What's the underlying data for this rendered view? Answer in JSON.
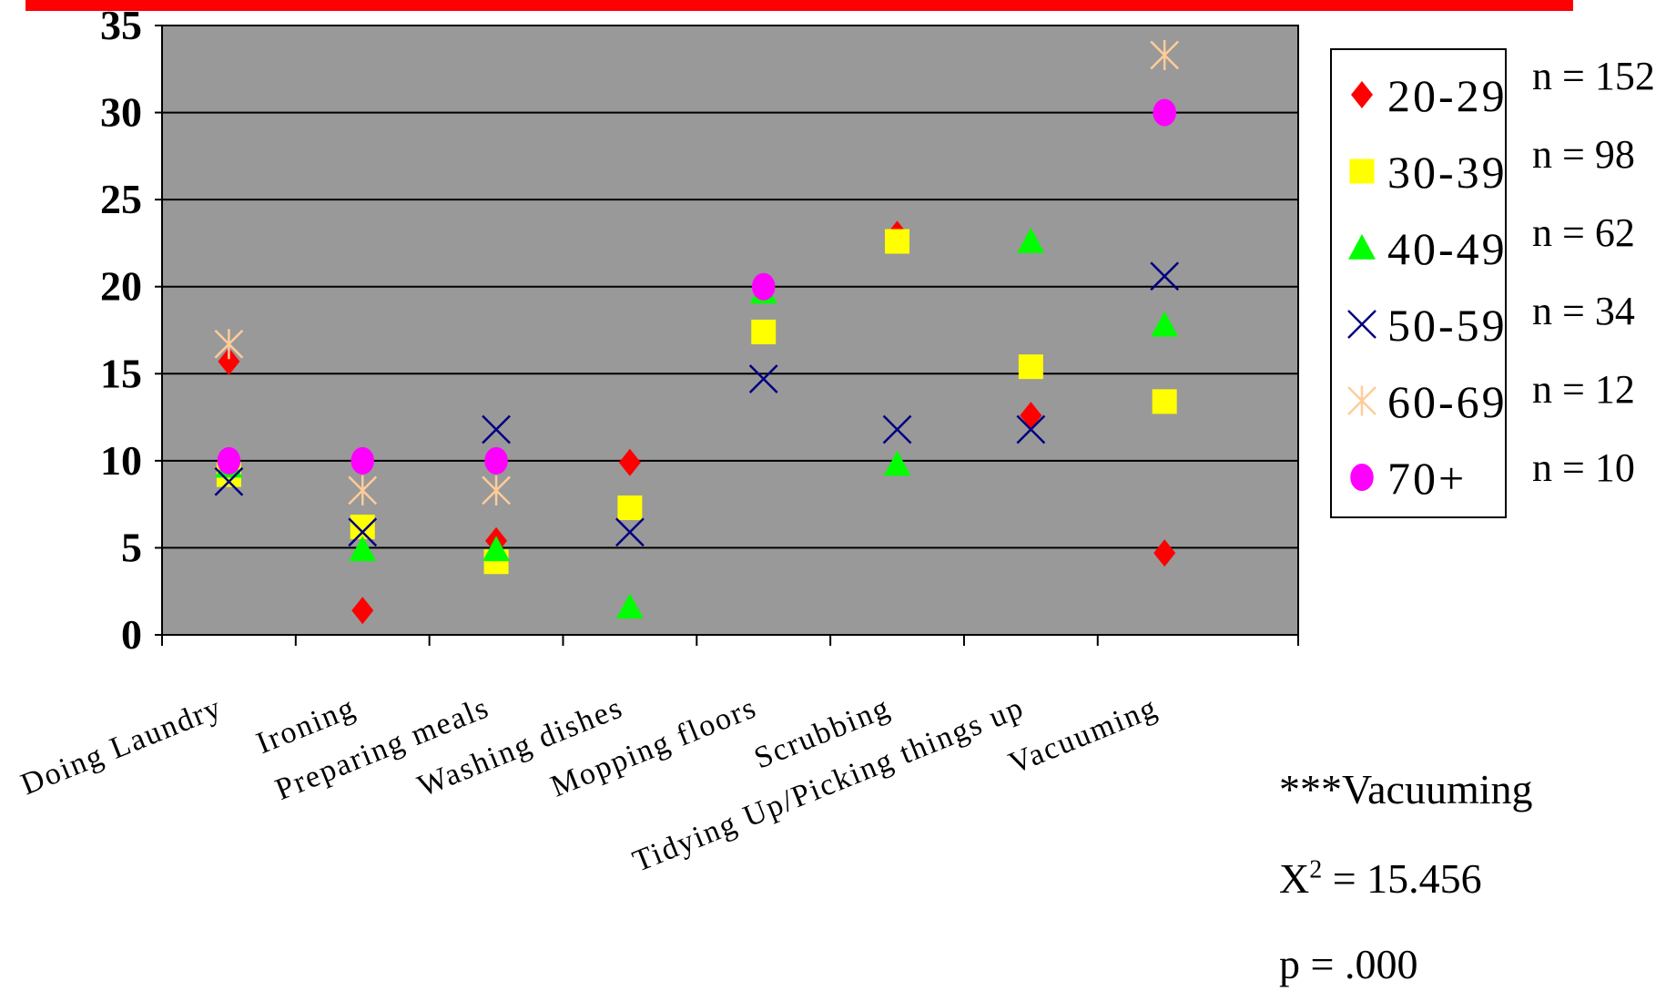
{
  "chart_data": {
    "type": "scatter",
    "title": "",
    "xlabel": "",
    "ylabel": "",
    "ylim": [
      0,
      35
    ],
    "y_ticks": [
      "0",
      "5",
      "10",
      "15",
      "20",
      "25",
      "30",
      "35"
    ],
    "categories": [
      "Doing Laundry",
      "Ironing",
      "Preparing meals",
      "Washing dishes",
      "Mopping floors",
      "Scrubbing",
      "Tidying Up/Picking things up",
      "Vacuuming"
    ],
    "grid": true,
    "legend_position": "right",
    "series": [
      {
        "name": "20-29",
        "marker": "diamond",
        "color": "#ff0000",
        "values": [
          15.7,
          1.4,
          5.4,
          9.9,
          null,
          23.0,
          12.6,
          4.7
        ]
      },
      {
        "name": "30-39",
        "marker": "square",
        "color": "#ffff00",
        "values": [
          9.2,
          6.2,
          4.2,
          7.3,
          17.4,
          22.6,
          15.4,
          13.4
        ]
      },
      {
        "name": "40-49",
        "marker": "triangle",
        "color": "#00ff00",
        "values": [
          9.7,
          4.9,
          4.9,
          1.6,
          19.7,
          9.8,
          22.6,
          17.8
        ]
      },
      {
        "name": "50-59",
        "marker": "x",
        "color": "#000080",
        "values": [
          8.8,
          5.9,
          11.8,
          5.9,
          14.7,
          11.8,
          11.8,
          20.6
        ]
      },
      {
        "name": "60-69",
        "marker": "asterisk",
        "color": "#ffcc99",
        "values": [
          16.7,
          8.3,
          8.3,
          null,
          null,
          null,
          null,
          33.3
        ]
      },
      {
        "name": "70+",
        "marker": "circle",
        "color": "#ff00ff",
        "values": [
          10.0,
          10.0,
          10.0,
          null,
          20.0,
          null,
          null,
          30.0
        ]
      }
    ]
  },
  "sample_sizes": [
    "n = 152",
    "n = 98",
    "n = 62",
    "n = 34",
    "n = 12",
    "n = 10"
  ],
  "stats": {
    "heading": "***Vacuuming",
    "chi_prefix": "X",
    "chi_sup": "2",
    "chi_value": " = 15.456",
    "p_value": "p = .000"
  },
  "colors": {
    "plot_background": "#999999",
    "top_banner": "#ff0000"
  }
}
